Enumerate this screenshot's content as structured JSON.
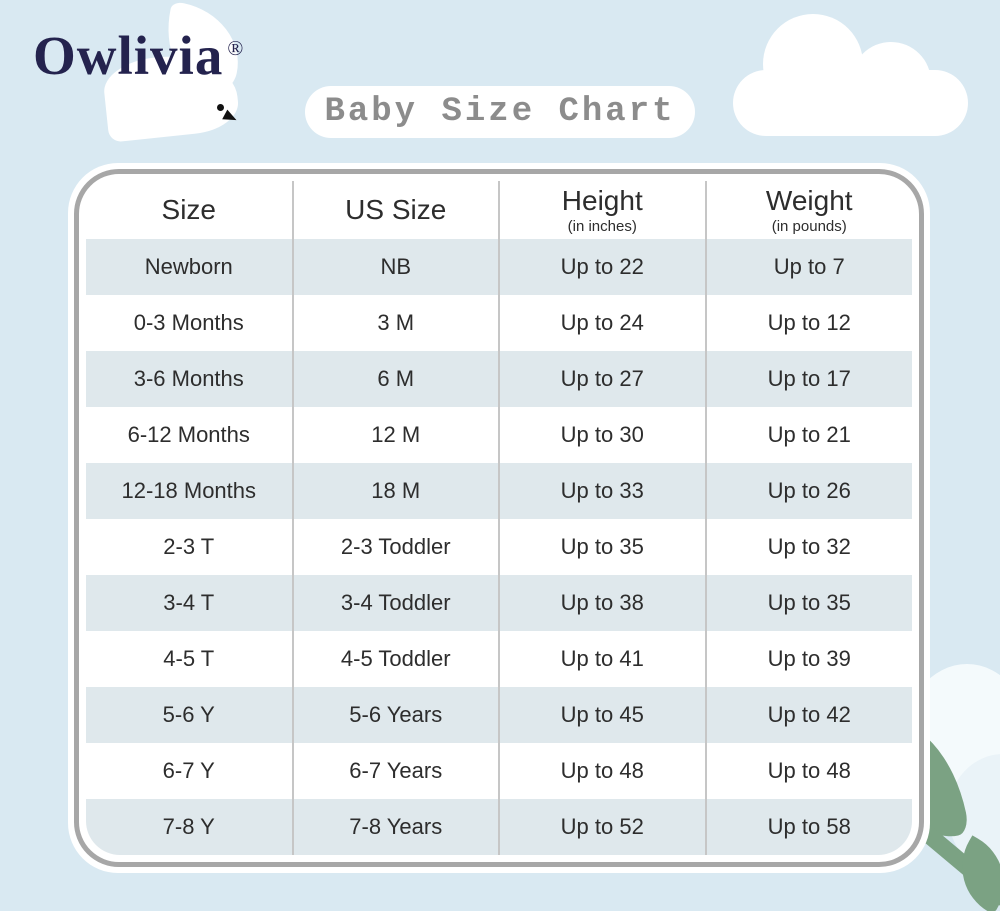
{
  "logo": {
    "text": "Owlivia",
    "registered": "®",
    "color": "#24234e"
  },
  "title": {
    "text": "Baby Size Chart",
    "text_color": "#8c8c8c"
  },
  "colors": {
    "background": "#d9e9f2",
    "card_border": "#a7a7a7",
    "column_separator": "#c6c6c6",
    "row_stripe": "#dfe8ec",
    "table_text": "#2d2d2d",
    "leaf_green": "#7ba283"
  },
  "chart_data": {
    "type": "table",
    "title": "Baby Size Chart",
    "columns": [
      {
        "label": "Size",
        "sub": ""
      },
      {
        "label": "US Size",
        "sub": ""
      },
      {
        "label": "Height",
        "sub": "(in inches)"
      },
      {
        "label": "Weight",
        "sub": "(in pounds)"
      }
    ],
    "rows": [
      [
        "Newborn",
        "NB",
        "Up to 22",
        "Up to 7"
      ],
      [
        "0-3 Months",
        "3 M",
        "Up to 24",
        "Up to 12"
      ],
      [
        "3-6 Months",
        "6 M",
        "Up to 27",
        "Up to 17"
      ],
      [
        "6-12 Months",
        "12 M",
        "Up to 30",
        "Up to 21"
      ],
      [
        "12-18 Months",
        "18 M",
        "Up to 33",
        "Up to 26"
      ],
      [
        "2-3 T",
        "2-3 Toddler",
        "Up to 35",
        "Up to 32"
      ],
      [
        "3-4 T",
        "3-4 Toddler",
        "Up to 38",
        "Up to 35"
      ],
      [
        "4-5 T",
        "4-5 Toddler",
        "Up to 41",
        "Up to 39"
      ],
      [
        "5-6 Y",
        "5-6 Years",
        "Up to 45",
        "Up to 42"
      ],
      [
        "6-7 Y",
        "6-7 Years",
        "Up to 48",
        "Up to 48"
      ],
      [
        "7-8 Y",
        "7-8 Years",
        "Up to 52",
        "Up to 58"
      ]
    ],
    "striped_row_indices": [
      0,
      2,
      4,
      6,
      8,
      10
    ],
    "legend": "none",
    "grid": "vertical-separators-only"
  }
}
